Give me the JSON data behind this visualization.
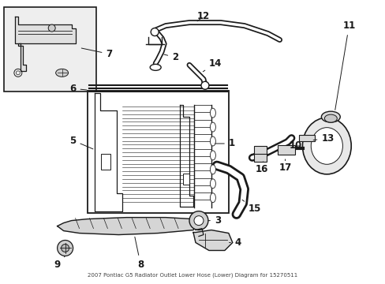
{
  "title": "2007 Pontiac G5 Radiator Outlet Lower Hose (Lower) Diagram for 15270511",
  "bg_color": "#ffffff",
  "line_color": "#1a1a1a",
  "figsize": [
    4.89,
    3.6
  ],
  "dpi": 100
}
